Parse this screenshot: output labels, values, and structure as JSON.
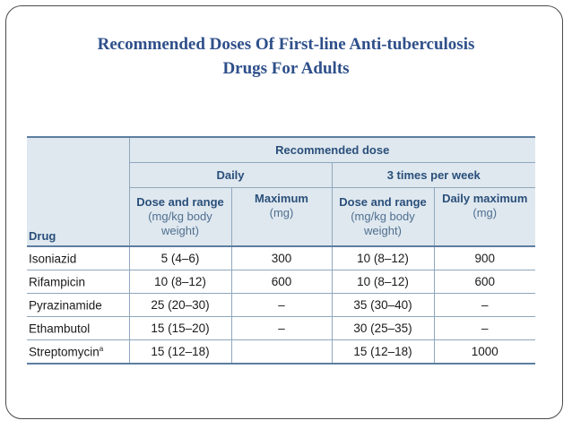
{
  "title": {
    "line1": "Recommended Doses Of First-line Anti-tuberculosis",
    "line2": "Drugs For Adults"
  },
  "table": {
    "header": {
      "recommended": "Recommended dose",
      "daily": "Daily",
      "three_times": "3 times per week",
      "drug": "Drug",
      "col1_title": "Dose and range",
      "col1_sub1": "(mg/kg body",
      "col1_sub2": "weight)",
      "col2_title": "Maximum",
      "col2_sub": "(mg)",
      "col3_title": "Dose and range",
      "col3_sub1": "(mg/kg body",
      "col3_sub2": "weight)",
      "col4_title": "Daily maximum",
      "col4_sub": "(mg)"
    },
    "rows": [
      {
        "drug": "Isoniazid",
        "sup": "",
        "daily_dose": "5 (4–6)",
        "daily_max": "300",
        "tw_dose": "10 (8–12)",
        "tw_max": "900"
      },
      {
        "drug": "Rifampicin",
        "sup": "",
        "daily_dose": "10 (8–12)",
        "daily_max": "600",
        "tw_dose": "10 (8–12)",
        "tw_max": "600"
      },
      {
        "drug": "Pyrazinamide",
        "sup": "",
        "daily_dose": "25 (20–30)",
        "daily_max": "–",
        "tw_dose": "35 (30–40)",
        "tw_max": "–"
      },
      {
        "drug": "Ethambutol",
        "sup": "",
        "daily_dose": "15 (15–20)",
        "daily_max": "–",
        "tw_dose": "30 (25–35)",
        "tw_max": "–"
      },
      {
        "drug": "Streptomycin",
        "sup": "a",
        "daily_dose": "15 (12–18)",
        "daily_max": "",
        "tw_dose": "15 (12–18)",
        "tw_max": "1000"
      }
    ]
  }
}
